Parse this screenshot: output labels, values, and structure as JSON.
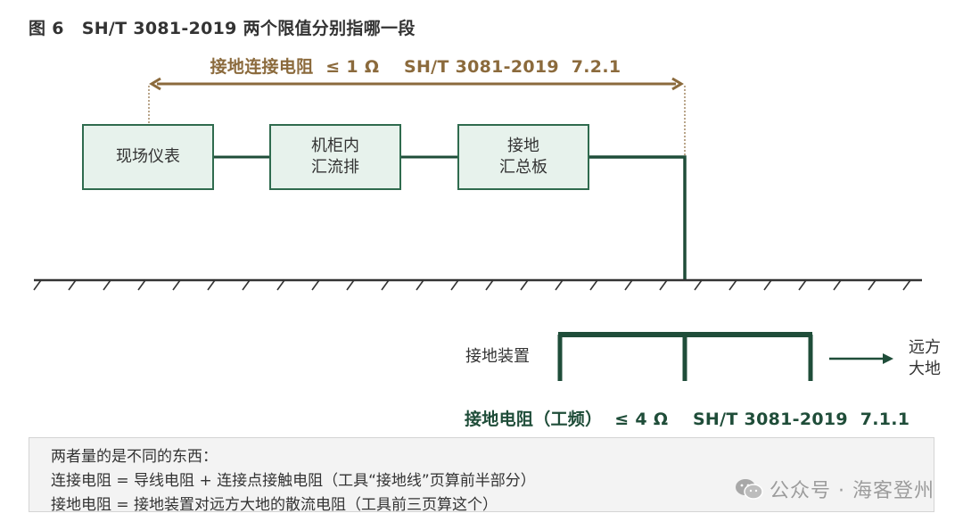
{
  "figure": {
    "number": "图 6",
    "title": "SH/T 3081-2019 两个限值分别指哪一段"
  },
  "top_label": {
    "name": "接地连接电阻",
    "limit": "≤ 1 Ω",
    "ref": "SH/T 3081-2019  7.2.1"
  },
  "boxes": {
    "box1": {
      "line1": "现场仪表"
    },
    "box2": {
      "line1": "机柜内",
      "line2": "汇流排"
    },
    "box3": {
      "line1": "接地",
      "line2": "汇总板"
    }
  },
  "ground_device_label": "接地装置",
  "far_earth": {
    "line1": "远方",
    "line2": "大地"
  },
  "bottom_label": {
    "name": "接地电阻（工频）",
    "limit": "≤ 4 Ω",
    "ref": "SH/T 3081-2019  7.1.1"
  },
  "note": {
    "line1": "两者量的是不同的东西：",
    "line2": "连接电阻 = 导线电阻 + 连接点接触电阻（工具“接地线”页算前半部分）",
    "line3": "接地电阻 = 接地装置对远方大地的散流电阻（工具前三页算这个）"
  },
  "watermark": "公众号 · 海客登州",
  "colors": {
    "green": "#2f6b4e",
    "brown": "#8b6a3c",
    "box_fill": "#e7f2ec",
    "note_bg": "#f3f3f3"
  }
}
